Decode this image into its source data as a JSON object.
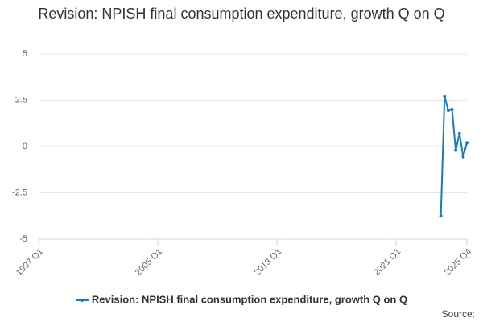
{
  "chart_data": {
    "type": "line",
    "title": "Revision: NPISH final consumption expenditure, growth Q on Q",
    "categories": [
      "1997 Q1",
      null,
      null,
      null,
      null,
      null,
      null,
      null,
      null,
      null,
      null,
      null,
      null,
      null,
      null,
      null,
      null,
      null,
      null,
      null,
      null,
      null,
      null,
      null,
      null,
      null,
      null,
      null,
      null,
      null,
      null,
      null,
      "2005 Q1",
      null,
      null,
      null,
      null,
      null,
      null,
      null,
      null,
      null,
      null,
      null,
      null,
      null,
      null,
      null,
      null,
      null,
      null,
      null,
      null,
      null,
      null,
      null,
      null,
      null,
      null,
      null,
      null,
      null,
      null,
      null,
      "2013 Q1",
      null,
      null,
      null,
      null,
      null,
      null,
      null,
      null,
      null,
      null,
      null,
      null,
      null,
      null,
      null,
      null,
      null,
      null,
      null,
      null,
      null,
      null,
      null,
      null,
      null,
      null,
      null,
      null,
      null,
      null,
      null,
      "2021 Q1",
      null,
      null,
      null,
      null,
      null,
      null,
      null,
      null,
      null,
      null,
      null,
      null,
      null,
      null,
      null,
      null,
      null,
      null,
      "2025 Q4"
    ],
    "series": [
      {
        "name": "Revision: NPISH final consumption expenditure, growth Q on Q",
        "color": "#1a7bbb",
        "values": [
          null,
          null,
          null,
          null,
          null,
          null,
          null,
          null,
          null,
          null,
          null,
          null,
          null,
          null,
          null,
          null,
          null,
          null,
          null,
          null,
          null,
          null,
          null,
          null,
          null,
          null,
          null,
          null,
          null,
          null,
          null,
          null,
          null,
          null,
          null,
          null,
          null,
          null,
          null,
          null,
          null,
          null,
          null,
          null,
          null,
          null,
          null,
          null,
          null,
          null,
          null,
          null,
          null,
          null,
          null,
          null,
          null,
          null,
          null,
          null,
          null,
          null,
          null,
          null,
          null,
          null,
          null,
          null,
          null,
          null,
          null,
          null,
          null,
          null,
          null,
          null,
          null,
          null,
          null,
          null,
          null,
          null,
          null,
          null,
          null,
          null,
          null,
          null,
          null,
          null,
          null,
          null,
          null,
          null,
          null,
          null,
          null,
          null,
          null,
          null,
          null,
          null,
          null,
          null,
          null,
          null,
          null,
          null,
          -3.75,
          2.7,
          1.95,
          2.0,
          -0.2,
          0.7,
          -0.55,
          0.2
        ]
      }
    ],
    "ylim": [
      -5,
      5
    ],
    "yticks": [
      -5,
      -2.5,
      0,
      2.5,
      5
    ],
    "grid": true,
    "legend": "bottom",
    "source_label": "Source:"
  }
}
